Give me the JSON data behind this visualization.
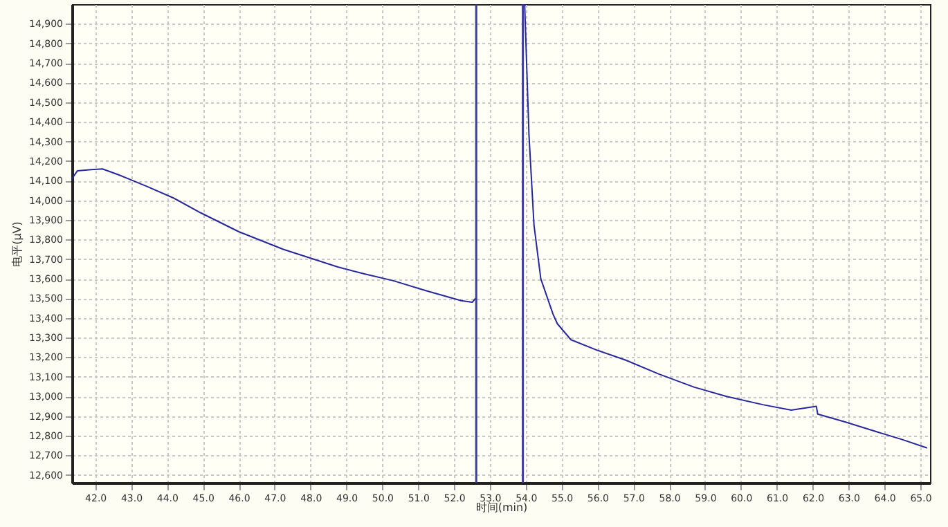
{
  "chart_data": {
    "type": "line",
    "xlabel": "时间(min)",
    "ylabel": "电平(μV)",
    "series": [
      {
        "color": "#27279a",
        "x": [
          41.35,
          41.5,
          41.89,
          42.2,
          42.65,
          43.41,
          44.2,
          44.94,
          46.0,
          47.24,
          48.0,
          48.76,
          49.5,
          50.29,
          51.2,
          52.2,
          52.51,
          52.6,
          53.0,
          53.97,
          54.09,
          54.23,
          54.42,
          54.76,
          54.88,
          55.26,
          56.0,
          56.79,
          57.7,
          58.7,
          59.6,
          60.61,
          61.4,
          62.1,
          62.14,
          62.9,
          63.78,
          64.5,
          65.19
        ],
        "values": [
          14110,
          14150,
          14156,
          14160,
          14130,
          14073,
          14010,
          13936,
          13840,
          13750,
          13705,
          13660,
          13625,
          13591,
          13540,
          13488,
          13480,
          13500,
          null,
          15000,
          14335,
          13874,
          13600,
          13420,
          13371,
          13289,
          13235,
          13185,
          13115,
          13047,
          13000,
          12958,
          12930,
          12950,
          12910,
          12870,
          12820,
          12780,
          12737
        ]
      }
    ],
    "ref_lines": [
      {
        "axis": "x",
        "value": 52.62,
        "color": "#3c3c9a"
      },
      {
        "axis": "x",
        "value": 53.92,
        "color": "#3c3c9a"
      }
    ],
    "xlim": [
      41.35,
      65.27
    ],
    "ylim": [
      12560,
      15000
    ],
    "xticks": [
      {
        "value": 42,
        "label": "42.0"
      },
      {
        "value": 43,
        "label": "43.0"
      },
      {
        "value": 44,
        "label": "44.0"
      },
      {
        "value": 45,
        "label": "45.0"
      },
      {
        "value": 46,
        "label": "46.0"
      },
      {
        "value": 47,
        "label": "47.0"
      },
      {
        "value": 48,
        "label": "48.0"
      },
      {
        "value": 49,
        "label": "49.0"
      },
      {
        "value": 50,
        "label": "50.0"
      },
      {
        "value": 51,
        "label": "51.0"
      },
      {
        "value": 52,
        "label": "52.0"
      },
      {
        "value": 53,
        "label": "53.0"
      },
      {
        "value": 54,
        "label": "54.0"
      },
      {
        "value": 55,
        "label": "55.0"
      },
      {
        "value": 56,
        "label": "56.0"
      },
      {
        "value": 57,
        "label": "57.0"
      },
      {
        "value": 58,
        "label": "58.0"
      },
      {
        "value": 59,
        "label": "59.0"
      },
      {
        "value": 60,
        "label": "60.0"
      },
      {
        "value": 61,
        "label": "61.0"
      },
      {
        "value": 62,
        "label": "62.0"
      },
      {
        "value": 63,
        "label": "63.0"
      },
      {
        "value": 64,
        "label": "64.0"
      },
      {
        "value": 65,
        "label": "65.0"
      }
    ],
    "yticks": [
      {
        "value": 12600,
        "label": "12,600"
      },
      {
        "value": 12700,
        "label": "12,700"
      },
      {
        "value": 12800,
        "label": "12,800"
      },
      {
        "value": 12900,
        "label": "12,900"
      },
      {
        "value": 13000,
        "label": "13,000"
      },
      {
        "value": 13100,
        "label": "13,100"
      },
      {
        "value": 13200,
        "label": "13,200"
      },
      {
        "value": 13300,
        "label": "13,300"
      },
      {
        "value": 13400,
        "label": "13,400"
      },
      {
        "value": 13500,
        "label": "13,500"
      },
      {
        "value": 13600,
        "label": "13,600"
      },
      {
        "value": 13700,
        "label": "13,700"
      },
      {
        "value": 13800,
        "label": "13,800"
      },
      {
        "value": 13900,
        "label": "13,900"
      },
      {
        "value": 14000,
        "label": "14,000"
      },
      {
        "value": 14100,
        "label": "14,100"
      },
      {
        "value": 14200,
        "label": "14,200"
      },
      {
        "value": 14300,
        "label": "14,300"
      },
      {
        "value": 14400,
        "label": "14,400"
      },
      {
        "value": 14500,
        "label": "14,500"
      },
      {
        "value": 14600,
        "label": "14,600"
      },
      {
        "value": 14700,
        "label": "14,700"
      },
      {
        "value": 14800,
        "label": "14,800"
      },
      {
        "value": 14900,
        "label": "14,900"
      }
    ],
    "grid": true,
    "marker": "none",
    "line_style": "solid"
  }
}
